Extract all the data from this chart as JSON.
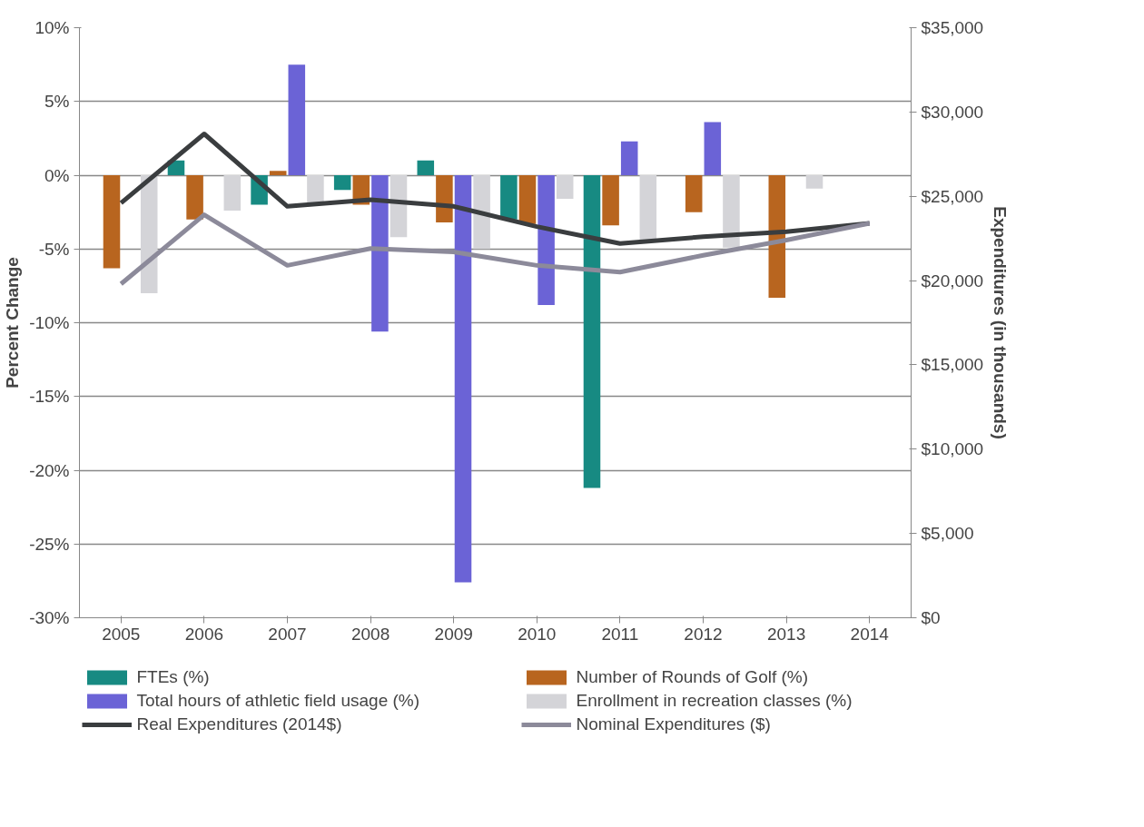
{
  "chart_data": {
    "type": "bar",
    "ylabel": "Percent Change",
    "y2label": "Expenditures (in thousands)",
    "categories": [
      "2005",
      "2006",
      "2007",
      "2008",
      "2009",
      "2010",
      "2011",
      "2012",
      "2013",
      "2014"
    ],
    "series": [
      {
        "name": "FTEs (%)",
        "color": "#178a82",
        "values": [
          null,
          1.0,
          -2.0,
          -1.0,
          1.0,
          -3.0,
          -21.2,
          null,
          null,
          null
        ]
      },
      {
        "name": "Number of Rounds of Golf (%)",
        "color": "#b8651f",
        "values": [
          -6.3,
          -3.0,
          0.3,
          -2.0,
          -3.2,
          -3.3,
          -3.4,
          -2.5,
          -8.3,
          null
        ]
      },
      {
        "name": "Total hours of athletic field usage (%)",
        "color": "#6b63d6",
        "values": [
          null,
          null,
          7.5,
          -10.6,
          -27.6,
          -8.8,
          2.3,
          3.6,
          null,
          null
        ]
      },
      {
        "name": "Enrollment in recreation classes (%)",
        "color": "#d4d4d8",
        "values": [
          -8.0,
          -2.4,
          -2.0,
          -4.2,
          -5.0,
          -1.6,
          -4.4,
          -4.9,
          -0.9,
          null
        ]
      },
      {
        "name": "Real Expenditures (2014$)",
        "type": "line",
        "axis": "y2",
        "color": "#3a3d3f",
        "values": [
          24600,
          28700,
          24400,
          24800,
          24400,
          23200,
          22200,
          22600,
          22900,
          23400
        ]
      },
      {
        "name": "Nominal Expenditures ($)",
        "type": "line",
        "axis": "y2",
        "color": "#8c8a9a",
        "values": [
          19800,
          23900,
          20900,
          21900,
          21700,
          20900,
          20500,
          21500,
          22400,
          23400
        ]
      }
    ],
    "ylim": [
      -30,
      10
    ],
    "yticks": [
      {
        "value": -30,
        "label": "-30%"
      },
      {
        "value": -25,
        "label": "-25%"
      },
      {
        "value": -20,
        "label": "-20%"
      },
      {
        "value": -15,
        "label": "-15%"
      },
      {
        "value": -10,
        "label": "-10%"
      },
      {
        "value": -5,
        "label": "-5%"
      },
      {
        "value": 0,
        "label": "0%"
      },
      {
        "value": 5,
        "label": "5%"
      },
      {
        "value": 10,
        "label": "10%"
      }
    ],
    "y2lim": [
      0,
      35000
    ],
    "y2ticks": [
      {
        "value": 0,
        "label": "$0"
      },
      {
        "value": 5000,
        "label": "$5,000"
      },
      {
        "value": 10000,
        "label": "$10,000"
      },
      {
        "value": 15000,
        "label": "$15,000"
      },
      {
        "value": 20000,
        "label": "$20,000"
      },
      {
        "value": 25000,
        "label": "$25,000"
      },
      {
        "value": 30000,
        "label": "$30,000"
      },
      {
        "value": 35000,
        "label": "$35,000"
      }
    ],
    "grid": "y",
    "legend": "bottom"
  }
}
